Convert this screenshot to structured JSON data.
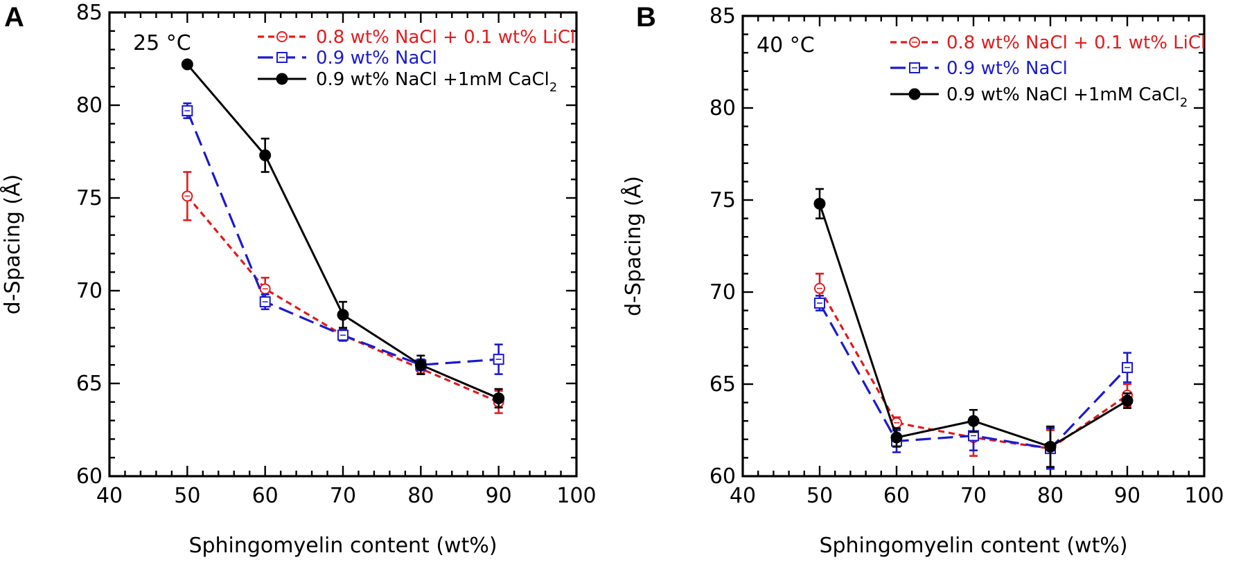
{
  "chart_data": [
    {
      "panel": "A",
      "type": "line",
      "annotation": "25 °C",
      "xlabel": "Sphingomyelin content (wt%)",
      "ylabel": "d-Spacing (Å)",
      "xlim": [
        40,
        100
      ],
      "ylim": [
        60,
        85
      ],
      "xticks": [
        40,
        50,
        60,
        70,
        80,
        90,
        100
      ],
      "yticks": [
        60,
        65,
        70,
        75,
        80,
        85
      ],
      "x": [
        50,
        60,
        70,
        80,
        90
      ],
      "legend_position": "top-right",
      "series": [
        {
          "name": "0.8 wt% NaCl + 0.1 wt% LiCl",
          "color": "#e31a1c",
          "line_style": "dotted",
          "marker": "open-circle",
          "values": [
            75.1,
            70.1,
            67.6,
            65.8,
            64.0
          ],
          "errors": [
            1.3,
            0.6,
            0.3,
            0.3,
            0.6
          ]
        },
        {
          "name": "0.9 wt% NaCl",
          "color": "#1a1acf",
          "line_style": "dashed",
          "marker": "open-square",
          "values": [
            79.7,
            69.4,
            67.6,
            66.0,
            66.3
          ],
          "errors": [
            0.4,
            0.4,
            0.3,
            0.3,
            0.8
          ]
        },
        {
          "name": "0.9 wt% NaCl +1mM CaCl",
          "name_sub": "2",
          "color": "#000000",
          "line_style": "solid",
          "marker": "filled-circle",
          "values": [
            82.2,
            77.3,
            68.7,
            66.0,
            64.2
          ],
          "errors": [
            0.0,
            0.9,
            0.7,
            0.5,
            0.5
          ]
        }
      ]
    },
    {
      "panel": "B",
      "type": "line",
      "annotation": "40 °C",
      "xlabel": "Sphingomyelin content (wt%)",
      "ylabel": "d-Spacing (Å)",
      "xlim": [
        40,
        100
      ],
      "ylim": [
        60,
        85
      ],
      "xticks": [
        40,
        50,
        60,
        70,
        80,
        90,
        100
      ],
      "yticks": [
        60,
        65,
        70,
        75,
        80,
        85
      ],
      "x": [
        50,
        60,
        70,
        80,
        90
      ],
      "legend_position": "top-right",
      "series": [
        {
          "name": "0.8 wt% NaCl + 0.1 wt% LiCl",
          "color": "#e31a1c",
          "line_style": "dotted",
          "marker": "open-circle",
          "values": [
            70.2,
            62.9,
            62.1,
            61.5,
            64.4
          ],
          "errors": [
            0.8,
            0.3,
            1.0,
            1.0,
            0.6
          ]
        },
        {
          "name": "0.9 wt% NaCl",
          "color": "#1a1acf",
          "line_style": "dashed",
          "marker": "open-square",
          "values": [
            69.4,
            61.9,
            62.2,
            61.5,
            65.9
          ],
          "errors": [
            0.4,
            0.6,
            0.8,
            1.1,
            0.8
          ]
        },
        {
          "name": "0.9 wt% NaCl +1mM CaCl",
          "name_sub": "2",
          "color": "#000000",
          "line_style": "solid",
          "marker": "filled-circle",
          "values": [
            74.8,
            62.1,
            63.0,
            61.6,
            64.1
          ],
          "errors": [
            0.8,
            0.5,
            0.6,
            1.1,
            0.4
          ]
        }
      ]
    }
  ]
}
